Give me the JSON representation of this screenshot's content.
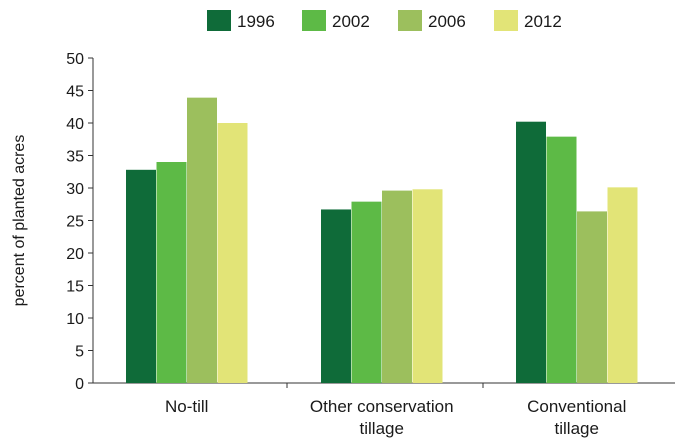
{
  "chart_data": {
    "type": "bar",
    "title": "",
    "xlabel": "",
    "ylabel": "percent of planted acres",
    "ylim": [
      0,
      50
    ],
    "yticks": [
      0,
      5,
      10,
      15,
      20,
      25,
      30,
      35,
      40,
      45,
      50
    ],
    "categories": [
      [
        "No-till"
      ],
      [
        "Other conservation",
        "tillage"
      ],
      [
        "Conventional",
        "tillage"
      ]
    ],
    "series": [
      {
        "name": "1996",
        "color": "#0f6b39",
        "values": [
          32.8,
          26.7,
          40.2
        ]
      },
      {
        "name": "2002",
        "color": "#5dba46",
        "values": [
          34.0,
          27.9,
          37.9
        ]
      },
      {
        "name": "2006",
        "color": "#9cbf5d",
        "values": [
          43.9,
          29.6,
          26.4
        ]
      },
      {
        "name": "2012",
        "color": "#e2e477",
        "values": [
          40.0,
          29.8,
          30.1
        ]
      }
    ],
    "legend_position": "top",
    "grid": false
  }
}
